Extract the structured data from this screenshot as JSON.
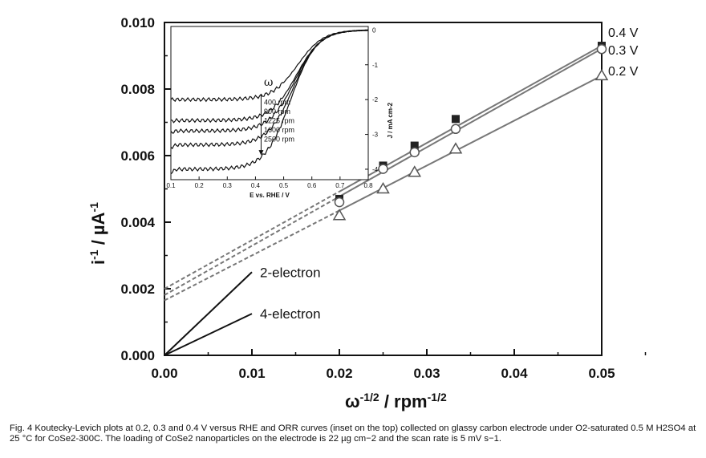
{
  "chart_data": {
    "type": "scatter",
    "xlabel": "ω-1/2 / rpm-1/2",
    "ylabel": "i-1 / µA-1",
    "xlim": [
      0.0,
      0.05
    ],
    "ylim": [
      0.0,
      0.01
    ],
    "x_ticks": [
      "0.00",
      "0.01",
      "0.02",
      "0.03",
      "0.04",
      "0.05"
    ],
    "y_ticks": [
      "0.000",
      "0.002",
      "0.004",
      "0.006",
      "0.008",
      "0.010"
    ],
    "x": [
      0.02,
      0.025,
      0.0286,
      0.0333,
      0.05
    ],
    "series": [
      {
        "name": "0.4 V",
        "marker": "filled-square",
        "color": "#222222",
        "values": [
          0.0047,
          0.0057,
          0.0063,
          0.0071,
          0.0093
        ],
        "fit": {
          "intercept": 0.002,
          "slope": 0.146
        }
      },
      {
        "name": "0.3 V",
        "marker": "open-circle",
        "color": "#555555",
        "values": [
          0.0046,
          0.0056,
          0.0061,
          0.0068,
          0.0092
        ],
        "fit": {
          "intercept": 0.00181,
          "slope": 0.148
        }
      },
      {
        "name": "0.2 V",
        "marker": "open-triangle",
        "color": "#555555",
        "values": [
          0.0042,
          0.005,
          0.0055,
          0.0062,
          0.0084
        ],
        "fit": {
          "intercept": 0.00165,
          "slope": 0.135
        }
      }
    ],
    "reference_lines": [
      {
        "name": "2-electron",
        "x": [
          0.0,
          0.01
        ],
        "y": [
          0.0,
          0.0025
        ]
      },
      {
        "name": "4-electron",
        "x": [
          0.0,
          0.01
        ],
        "y": [
          0.0,
          0.00125
        ]
      }
    ],
    "inset": {
      "xlabel": "E vs. RHE / V",
      "ylabel": "J / mA cm-2",
      "xlim": [
        0.1,
        0.8
      ],
      "ylim": [
        -4.3,
        0.1
      ],
      "x_ticks": [
        "0.1",
        "0.2",
        "0.3",
        "0.4",
        "0.5",
        "0.6",
        "0.7",
        "0.8"
      ],
      "y_ticks": [
        "0",
        "-1",
        "-2",
        "-3",
        "-4"
      ],
      "legend_title": "ω",
      "legend": [
        "400 rpm",
        "900 rpm",
        "1225 rpm",
        "1600 rpm",
        "2500 rpm"
      ],
      "curves": [
        {
          "name": "400 rpm",
          "plateau": -2.0,
          "e_half": 0.55,
          "width": 0.045
        },
        {
          "name": "900 rpm",
          "plateau": -2.6,
          "e_half": 0.545,
          "width": 0.045
        },
        {
          "name": "1225 rpm",
          "plateau": -2.9,
          "e_half": 0.54,
          "width": 0.045
        },
        {
          "name": "1600 rpm",
          "plateau": -3.3,
          "e_half": 0.535,
          "width": 0.045
        },
        {
          "name": "2500 rpm",
          "plateau": -4.0,
          "e_half": 0.525,
          "width": 0.045
        }
      ]
    }
  },
  "caption": {
    "text": "Fig. 4  Koutecky-Levich plots at 0.2, 0.3 and 0.4 V versus RHE and ORR curves (inset on the top) collected on glassy carbon electrode under O2-saturated 0.5 M H2SO4 at 25 °C for CoSe2-300C. The loading of CoSe2 nanoparticles on the electrode is 22 µg cm−2 and the scan rate is 5 mV s−1."
  }
}
